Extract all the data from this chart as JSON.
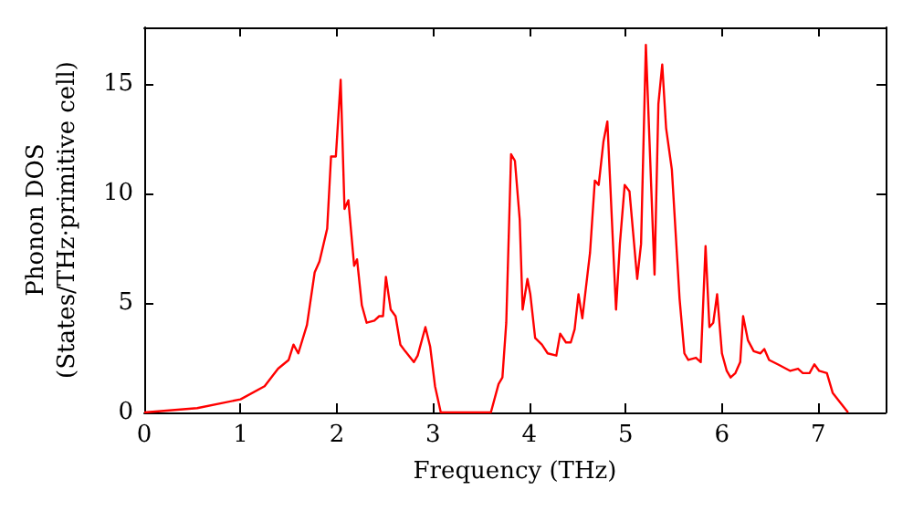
{
  "chart_data": {
    "type": "line",
    "xlabel": "Frequency (THz)",
    "ylabel": "Phonon DOS\n(States/THz·primitive cell)",
    "x": [
      0,
      0.55,
      1.0,
      1.25,
      1.39,
      1.5,
      1.55,
      1.6,
      1.69,
      1.77,
      1.82,
      1.9,
      1.94,
      1.99,
      2.04,
      2.08,
      2.12,
      2.18,
      2.21,
      2.26,
      2.31,
      2.39,
      2.44,
      2.48,
      2.51,
      2.56,
      2.61,
      2.66,
      2.71,
      2.8,
      2.84,
      2.92,
      2.97,
      3.02,
      3.08,
      3.6,
      3.68,
      3.72,
      3.76,
      3.81,
      3.85,
      3.9,
      3.93,
      3.98,
      4.01,
      4.06,
      4.13,
      4.19,
      4.28,
      4.32,
      4.38,
      4.43,
      4.47,
      4.51,
      4.55,
      4.63,
      4.68,
      4.72,
      4.77,
      4.81,
      4.9,
      4.94,
      4.99,
      5.04,
      5.12,
      5.16,
      5.21,
      5.3,
      5.34,
      5.38,
      5.42,
      5.48,
      5.56,
      5.61,
      5.65,
      5.73,
      5.78,
      5.83,
      5.87,
      5.91,
      5.95,
      6.0,
      6.05,
      6.09,
      6.14,
      6.19,
      6.22,
      6.27,
      6.33,
      6.4,
      6.44,
      6.49,
      6.58,
      6.71,
      6.79,
      6.84,
      6.91,
      6.96,
      7.01,
      7.09,
      7.15,
      7.22,
      7.31
    ],
    "series": [
      {
        "color": "#ff0000",
        "values": [
          0,
          0.2,
          0.6,
          1.2,
          2.0,
          2.4,
          3.1,
          2.7,
          4.0,
          6.4,
          6.9,
          8.4,
          11.7,
          11.7,
          15.2,
          9.3,
          9.7,
          6.7,
          7.0,
          4.9,
          4.1,
          4.2,
          4.4,
          4.4,
          6.2,
          4.7,
          4.4,
          3.1,
          2.8,
          2.3,
          2.6,
          3.9,
          3.0,
          1.2,
          0,
          0,
          1.3,
          1.6,
          4.1,
          11.8,
          11.5,
          8.8,
          4.7,
          6.1,
          5.4,
          3.4,
          3.1,
          2.7,
          2.6,
          3.6,
          3.2,
          3.2,
          3.8,
          5.4,
          4.3,
          7.3,
          10.6,
          10.4,
          12.4,
          13.3,
          4.7,
          7.7,
          10.4,
          10.1,
          6.1,
          7.7,
          16.8,
          6.3,
          14.1,
          15.9,
          13.0,
          11.1,
          5.2,
          2.7,
          2.4,
          2.5,
          2.3,
          7.6,
          3.9,
          4.1,
          5.4,
          2.7,
          1.9,
          1.6,
          1.8,
          2.3,
          4.4,
          3.3,
          2.8,
          2.7,
          2.9,
          2.4,
          2.2,
          1.9,
          2.0,
          1.8,
          1.8,
          2.2,
          1.9,
          1.8,
          0.9,
          0.5,
          0
        ]
      }
    ],
    "xlim": [
      0,
      7.7
    ],
    "xticks": [
      0,
      1,
      2,
      3,
      4,
      5,
      6,
      7
    ],
    "ylim": [
      0,
      17.6
    ],
    "yticks": [
      0,
      5,
      10,
      15
    ],
    "grid": false,
    "marker": "none",
    "line_style": "solid"
  }
}
